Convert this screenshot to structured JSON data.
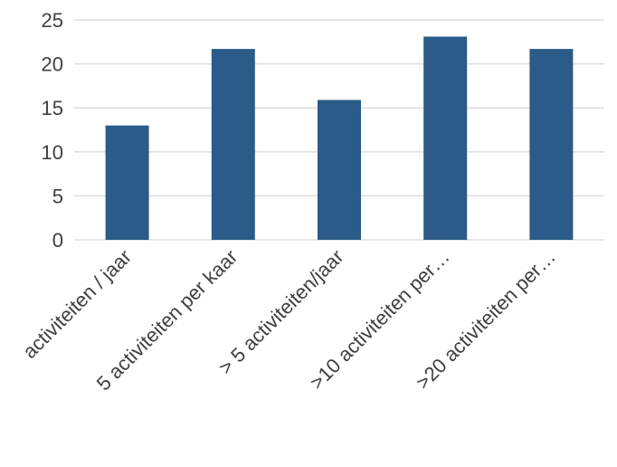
{
  "chart_data": {
    "type": "bar",
    "categories": [
      "activiteiten / jaar",
      "5 activiteiten per kaar",
      "> 5 activiteiten/jaar",
      ">10 activiteiten per…",
      ">20 activiteiten per…"
    ],
    "values": [
      13,
      21.7,
      15.9,
      23.1,
      21.7
    ],
    "ylim": [
      0,
      25
    ],
    "yticks": [
      0,
      5,
      10,
      15,
      20,
      25
    ],
    "grid": true,
    "legend": "none",
    "bar_color": "#2b5b88",
    "grid_color": "#d9d9d9",
    "text_color": "#404040"
  }
}
